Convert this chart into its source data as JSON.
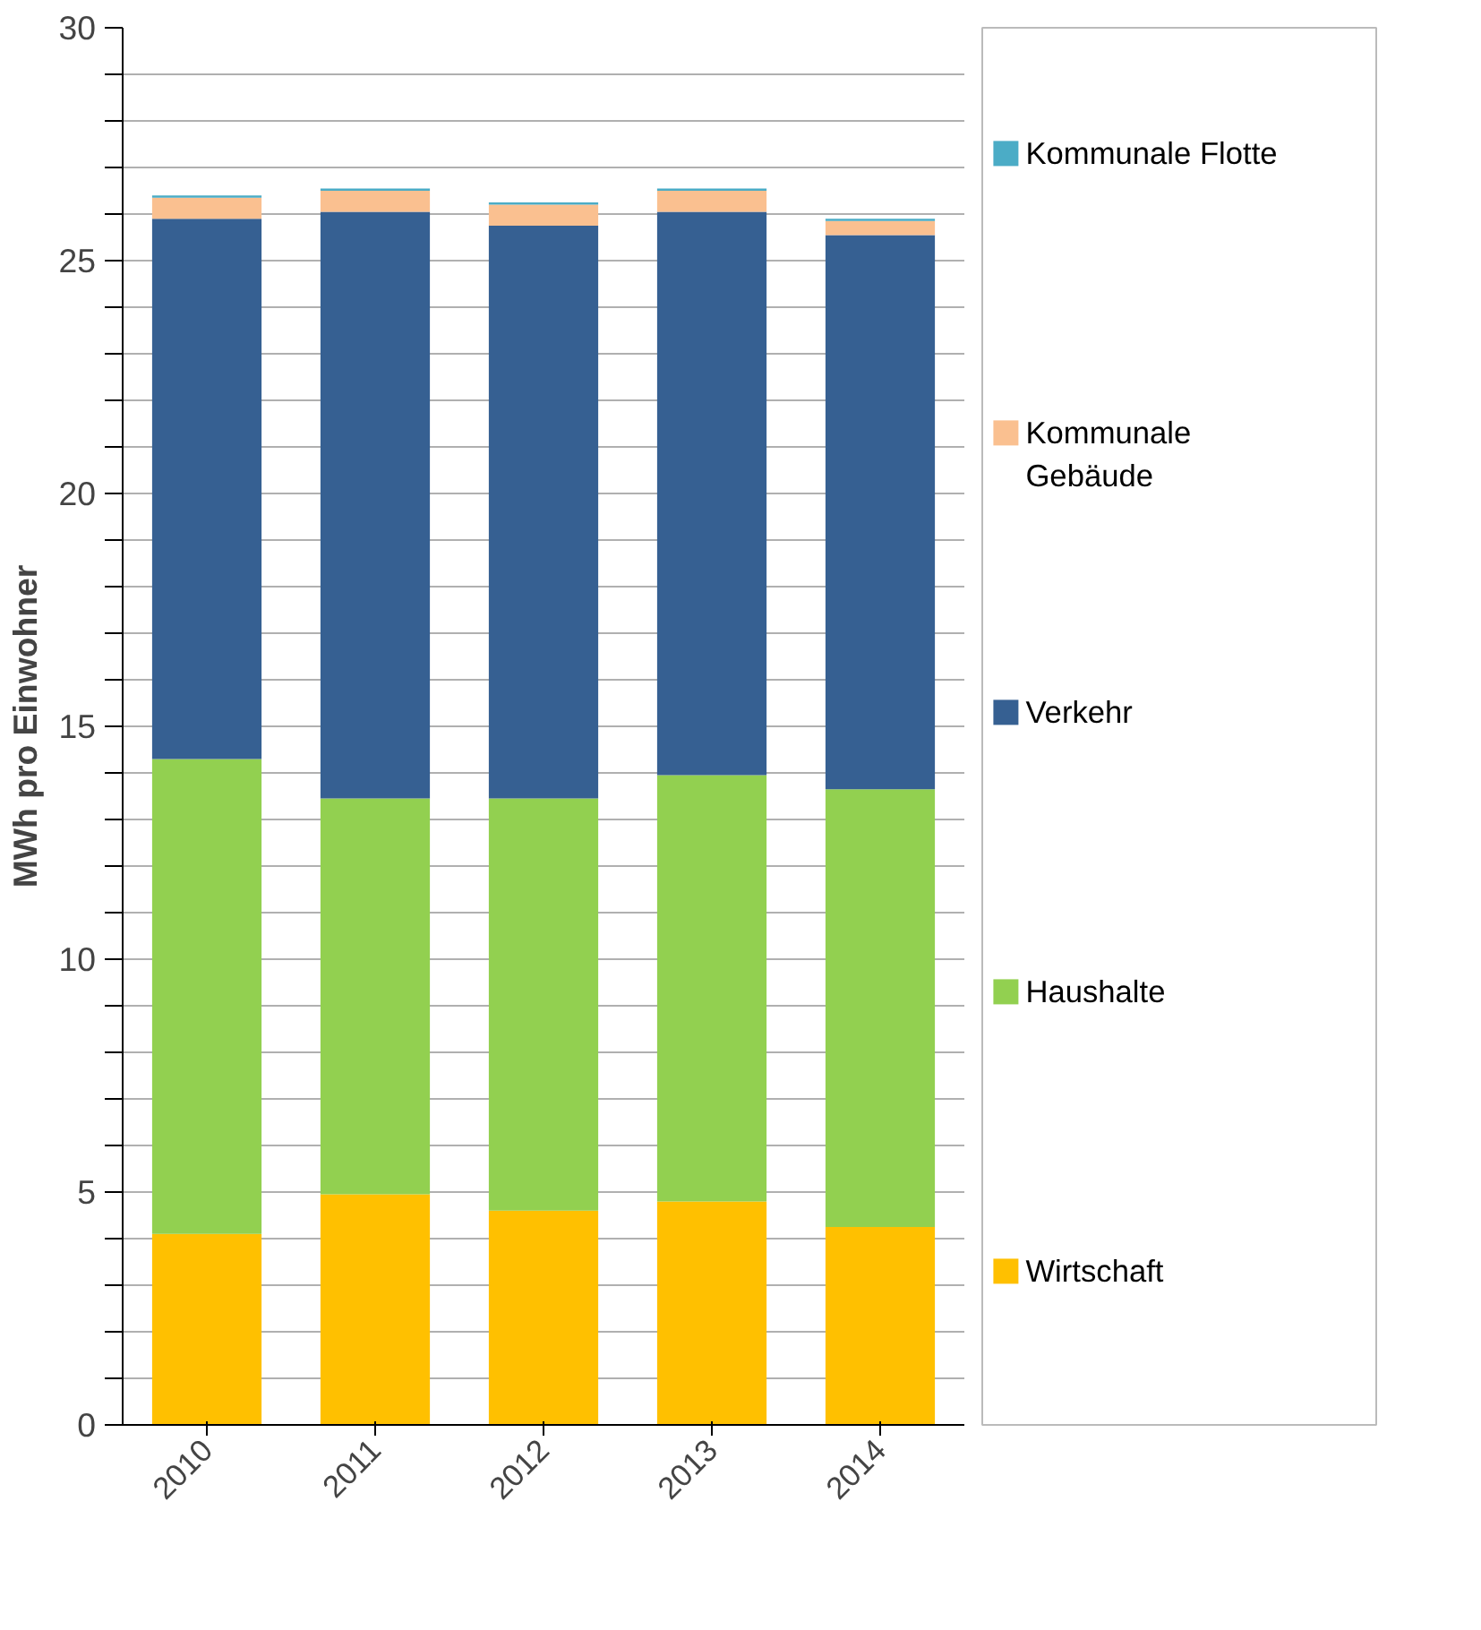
{
  "chart_data": {
    "type": "bar",
    "stacked": true,
    "ylabel": "MWh pro Einwohner",
    "categories": [
      "2010",
      "2011",
      "2012",
      "2013",
      "2014"
    ],
    "series": [
      {
        "name": "Wirtschaft",
        "color": "#ffc000",
        "values": [
          4.1,
          4.95,
          4.6,
          4.8,
          4.25
        ]
      },
      {
        "name": "Haushalte",
        "color": "#92d050",
        "values": [
          10.2,
          8.5,
          8.85,
          9.15,
          9.4
        ]
      },
      {
        "name": "Verkehr",
        "color": "#366092",
        "values": [
          11.6,
          12.6,
          12.3,
          12.1,
          11.9
        ]
      },
      {
        "name": "Kommunale Gebäude",
        "color": "#fac090",
        "values": [
          0.45,
          0.45,
          0.45,
          0.45,
          0.3
        ]
      },
      {
        "name": "Kommunale Flotte",
        "color": "#4bacc6",
        "values": [
          0.05,
          0.05,
          0.05,
          0.05,
          0.05
        ]
      }
    ],
    "ylim": [
      0,
      30
    ],
    "yticks": [
      0,
      {
        "value": 1,
        "label": null
      },
      {
        "value": 2,
        "label": null
      },
      {
        "value": 3,
        "label": null
      },
      {
        "value": 4,
        "label": null
      },
      5,
      {
        "value": 6,
        "label": null
      },
      {
        "value": 7,
        "label": null
      },
      {
        "value": 8,
        "label": null
      },
      {
        "value": 9,
        "label": null
      },
      10,
      {
        "value": 11,
        "label": null
      },
      {
        "value": 12,
        "label": null
      },
      {
        "value": 13,
        "label": null
      },
      {
        "value": 14,
        "label": null
      },
      15,
      {
        "value": 16,
        "label": null
      },
      {
        "value": 17,
        "label": null
      },
      {
        "value": 18,
        "label": null
      },
      {
        "value": 19,
        "label": null
      },
      20,
      {
        "value": 21,
        "label": null
      },
      {
        "value": 22,
        "label": null
      },
      {
        "value": 23,
        "label": null
      },
      {
        "value": 24,
        "label": null
      },
      25,
      {
        "value": 26,
        "label": null
      },
      {
        "value": 27,
        "label": null
      },
      {
        "value": 28,
        "label": null
      },
      {
        "value": 29,
        "label": null
      },
      30
    ],
    "grid": "y",
    "legend": "right"
  }
}
